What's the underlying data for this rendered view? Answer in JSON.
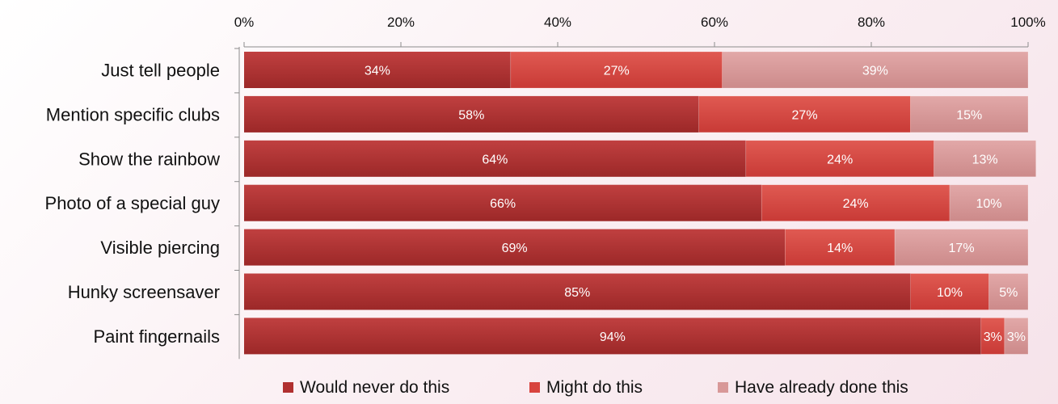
{
  "chart_data": {
    "type": "bar",
    "orientation": "horizontal",
    "stacked": true,
    "categories": [
      "Just tell people",
      "Mention specific clubs",
      "Show the rainbow",
      "Photo of a special guy",
      "Visible piercing",
      "Hunky screensaver",
      "Paint fingernails"
    ],
    "series": [
      {
        "name": "Would never do this",
        "color": "#b03030",
        "values": [
          34,
          58,
          64,
          66,
          69,
          85,
          94
        ],
        "labels": [
          "34%",
          "58%",
          "64%",
          "66%",
          "69%",
          "85%",
          "94%"
        ]
      },
      {
        "name": "Might do this",
        "color": "#d8443e",
        "values": [
          27,
          27,
          24,
          24,
          14,
          10,
          3
        ],
        "labels": [
          "27%",
          "27%",
          "24%",
          "24%",
          "14%",
          "10%",
          "3%"
        ]
      },
      {
        "name": "Have already done this",
        "color": "#d89898",
        "values": [
          39,
          15,
          13,
          10,
          17,
          5,
          3
        ],
        "labels": [
          "39%",
          "15%",
          "13%",
          "10%",
          "17%",
          "5%",
          "3%"
        ]
      }
    ],
    "x_ticks": [
      "0%",
      "20%",
      "40%",
      "60%",
      "80%",
      "100%"
    ],
    "xlim": [
      0,
      100
    ],
    "x_axis_position": "top",
    "grid": false,
    "legend_position": "bottom"
  }
}
